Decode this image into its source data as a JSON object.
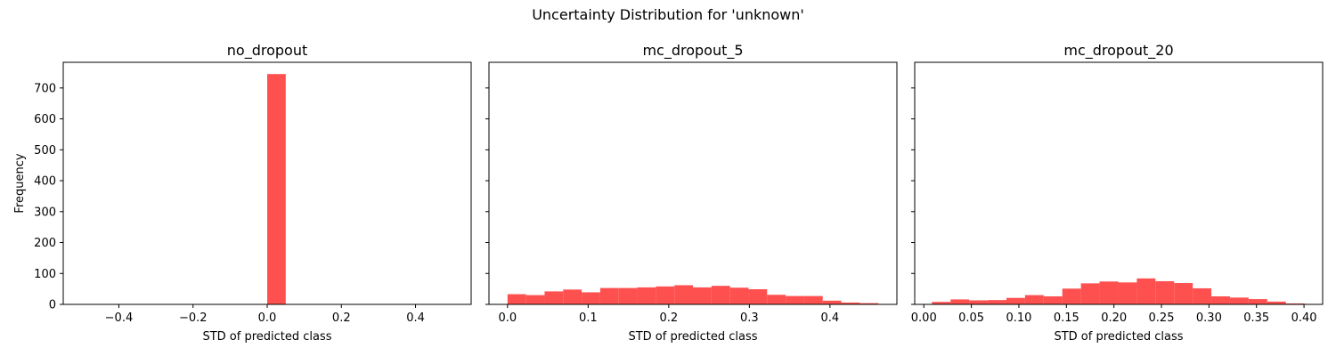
{
  "figure": {
    "suptitle": "Uncertainty Distribution for 'unknown'"
  },
  "colors": {
    "bar": "#ff5050",
    "axis": "#000000",
    "background": "#ffffff"
  },
  "chart_data": [
    {
      "type": "bar",
      "title": "no_dropout",
      "xlabel": "STD of predicted class",
      "ylabel": "Frequency",
      "xlim": [
        -0.55,
        0.55
      ],
      "ylim": [
        0,
        783
      ],
      "xticks": [
        -0.4,
        -0.2,
        0.0,
        0.2,
        0.4
      ],
      "xtick_labels": [
        "−0.4",
        "−0.2",
        "0.0",
        "0.2",
        "0.4"
      ],
      "yticks": [
        0,
        100,
        200,
        300,
        400,
        500,
        600,
        700
      ],
      "ytick_labels": [
        "0",
        "100",
        "200",
        "300",
        "400",
        "500",
        "600",
        "700"
      ],
      "show_yticklabels": true,
      "bins": [
        {
          "x0": 0.0,
          "x1": 0.05,
          "count": 745
        }
      ]
    },
    {
      "type": "bar",
      "title": "mc_dropout_5",
      "xlabel": "STD of predicted class",
      "xlim": [
        -0.023,
        0.483
      ],
      "ylim": [
        0,
        783
      ],
      "xticks": [
        0.0,
        0.1,
        0.2,
        0.3,
        0.4
      ],
      "xtick_labels": [
        "0.0",
        "0.1",
        "0.2",
        "0.3",
        "0.4"
      ],
      "yticks": [
        0,
        100,
        200,
        300,
        400,
        500,
        600,
        700
      ],
      "show_yticklabels": false,
      "bin_start": 0.0,
      "bin_width": 0.023,
      "counts": [
        33,
        30,
        42,
        48,
        39,
        53,
        53,
        55,
        58,
        62,
        55,
        60,
        54,
        49,
        31,
        27,
        27,
        12,
        6,
        4
      ]
    },
    {
      "type": "bar",
      "title": "mc_dropout_20",
      "xlabel": "STD of predicted class",
      "xlim": [
        -0.0096,
        0.4196
      ],
      "ylim": [
        0,
        783
      ],
      "xticks": [
        0.0,
        0.05,
        0.1,
        0.15,
        0.2,
        0.25,
        0.3,
        0.35,
        0.4
      ],
      "xtick_labels": [
        "0.00",
        "0.05",
        "0.10",
        "0.15",
        "0.20",
        "0.25",
        "0.30",
        "0.35",
        "0.40"
      ],
      "yticks": [
        0,
        100,
        200,
        300,
        400,
        500,
        600,
        700
      ],
      "show_yticklabels": false,
      "bin_start": 0.0085,
      "bin_width": 0.0196,
      "counts": [
        8,
        16,
        13,
        14,
        21,
        30,
        26,
        51,
        68,
        74,
        71,
        84,
        75,
        69,
        52,
        26,
        22,
        17,
        9,
        3
      ]
    }
  ]
}
